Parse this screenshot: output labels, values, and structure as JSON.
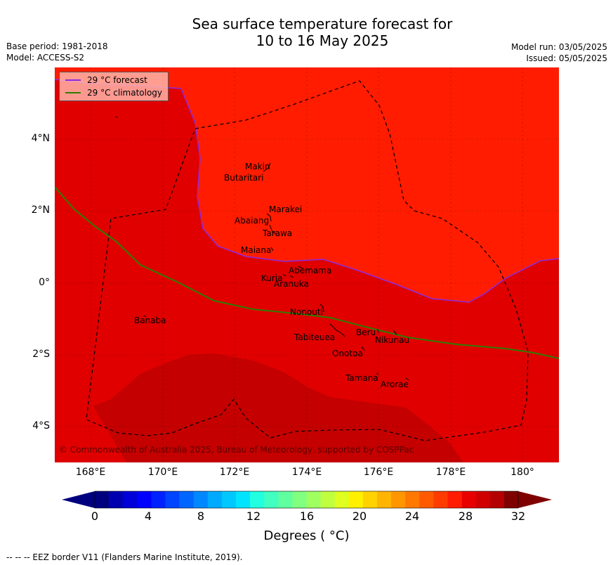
{
  "title": {
    "line1": "Sea surface temperature forecast for",
    "line2": "10 to 16 May 2025"
  },
  "meta": {
    "base_period": "Base period: 1981-2018",
    "model": "Model: ACCESS-S2",
    "model_run": "Model run: 03/05/2025",
    "issued": "Issued: 05/05/2025"
  },
  "legend": {
    "forecast_label": "29 °C  forecast",
    "forecast_color": "#8b2be2",
    "climatology_label": "29 °C  climatology",
    "climatology_color": "#2e7d00"
  },
  "axes": {
    "lat_labels": [
      "4°N",
      "2°N",
      "0°",
      "2°S",
      "4°S"
    ],
    "lon_labels": [
      "168°E",
      "170°E",
      "172°E",
      "174°E",
      "176°E",
      "178°E",
      "180°"
    ]
  },
  "islands": [
    "Makin",
    "Butaritari",
    "Marakei",
    "Abaiang",
    "Tarawa",
    "Maiana",
    "Abemama",
    "Kuria",
    "Aranuka",
    "Nonouti",
    "Banaba",
    "Beru",
    "Tabiteuea",
    "Nikunau",
    "Onotoa",
    "Tamana",
    "Arorae"
  ],
  "colors": {
    "zone_warm": "#ff1c00",
    "zone_hot": "#e00000",
    "zone_hottest": "#c40000"
  },
  "colorbar": {
    "ticks": [
      "0",
      "4",
      "8",
      "12",
      "16",
      "20",
      "24",
      "28",
      "32"
    ],
    "colors": [
      "#00007f",
      "#0000b0",
      "#0000d8",
      "#0000ff",
      "#0022ff",
      "#0044ff",
      "#0066ff",
      "#0088ff",
      "#00aaff",
      "#00c8ff",
      "#00e4ff",
      "#20ffe0",
      "#40ffc0",
      "#60ff9f",
      "#80ff80",
      "#9fff60",
      "#c0ff40",
      "#dfff20",
      "#fff000",
      "#ffd200",
      "#ffb400",
      "#ff9600",
      "#ff7800",
      "#ff5a00",
      "#ff3c00",
      "#ff1c00",
      "#e80000",
      "#d00000",
      "#b40000",
      "#7f0000"
    ],
    "low_color": "#00007f",
    "high_color": "#7f0000",
    "label": "Degrees ( °C)"
  },
  "copyright": "© Commonwealth of Australia 2025, Bureau of Meteorology, supported by COSPPac",
  "footnote": "--  --  -- EEZ border V11 (Flanders Marine Institute, 2019)."
}
